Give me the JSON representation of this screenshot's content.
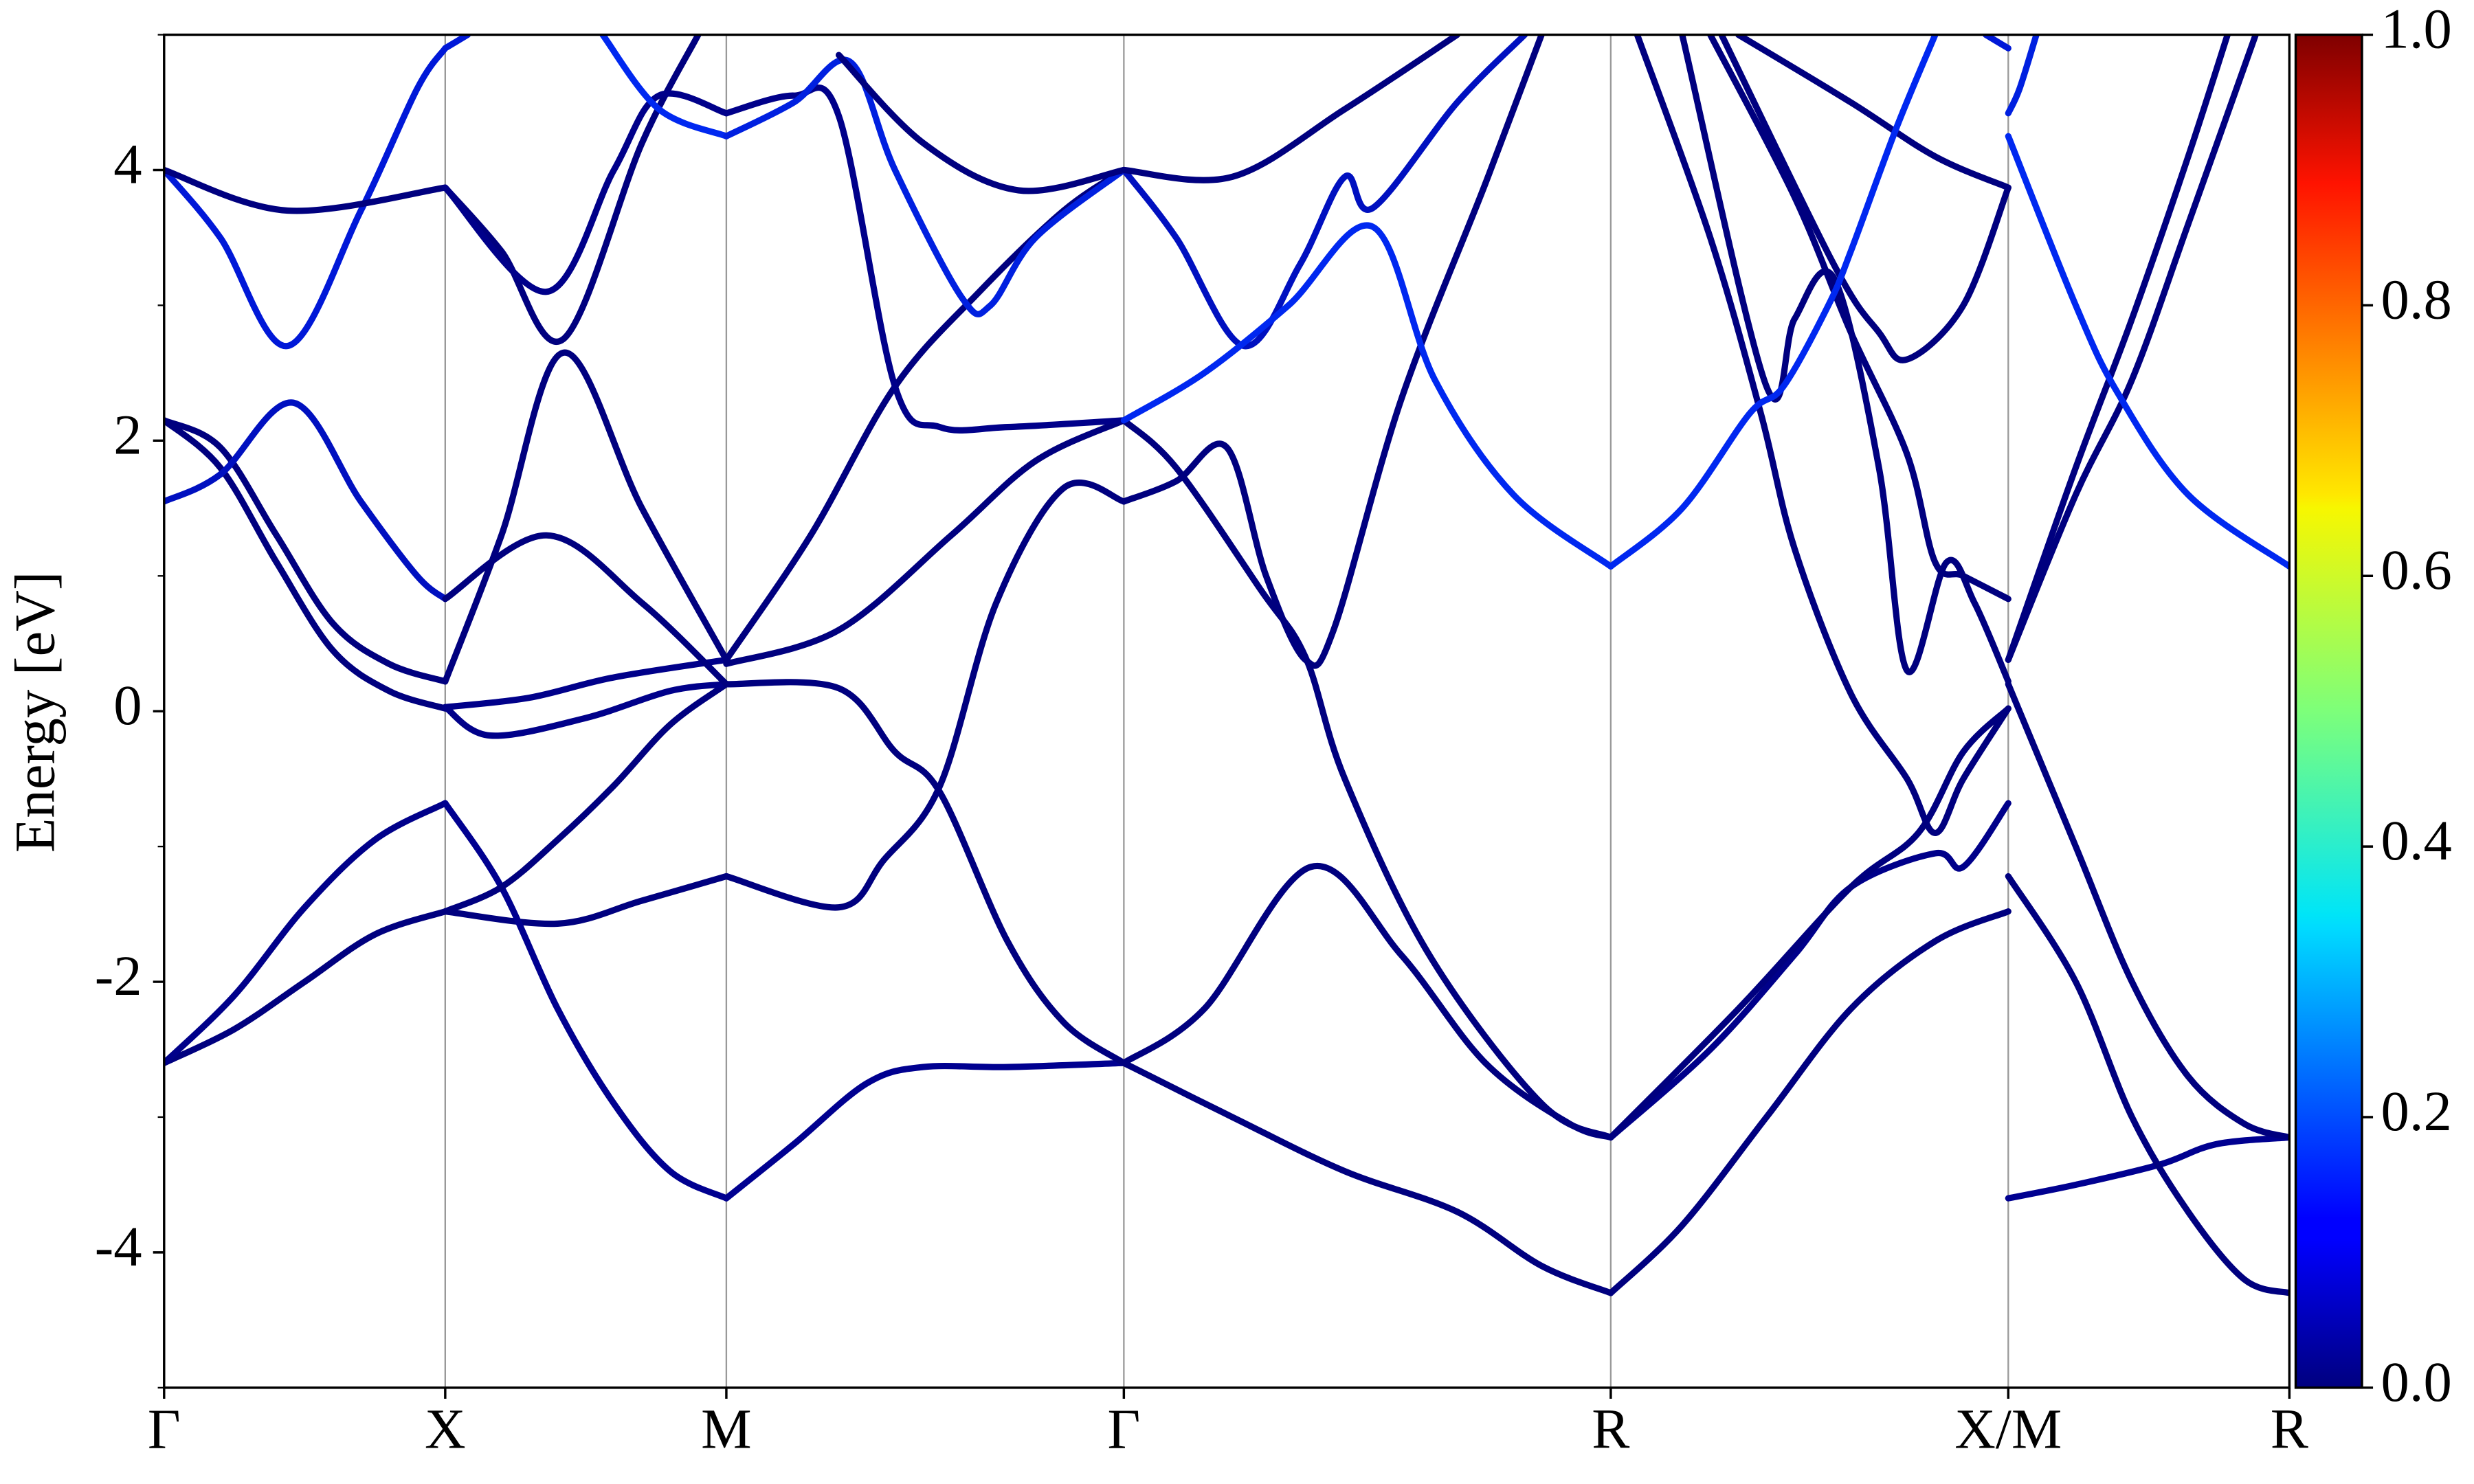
{
  "chart_data": {
    "type": "line",
    "ylabel": "Energy [eV]",
    "xlim": [
      0,
      3.78
    ],
    "ylim": [
      -5,
      5
    ],
    "xticks": [
      {
        "value": 0,
        "label": "Γ"
      },
      {
        "value": 0.5,
        "label": "X"
      },
      {
        "value": 1.0,
        "label": "M"
      },
      {
        "value": 1.707,
        "label": "Γ"
      },
      {
        "value": 2.573,
        "label": "R"
      },
      {
        "value": 3.28,
        "label": "X/M"
      },
      {
        "value": 3.78,
        "label": "R"
      }
    ],
    "yticks": [
      -4,
      -2,
      0,
      2,
      4
    ],
    "yminorticks": [
      -5,
      -3,
      -1,
      1,
      3,
      5
    ],
    "xgrid": true,
    "colorbar": {
      "colormap": "jet",
      "lim": [
        0,
        1
      ],
      "ticks": [
        {
          "value": 0,
          "label": "0.0"
        },
        {
          "value": 0.2,
          "label": "0.2"
        },
        {
          "value": 0.4,
          "label": "0.4"
        },
        {
          "value": 0.6,
          "label": "0.6"
        },
        {
          "value": 0.8,
          "label": "0.8"
        },
        {
          "value": 1,
          "label": "1.0"
        }
      ]
    },
    "series": [
      {
        "color": "#00007f",
        "x": [
          0,
          0.125,
          0.25,
          0.375,
          0.5
        ],
        "values": [
          -2.6,
          -2.35,
          -2.0,
          -1.65,
          -1.48
        ]
      },
      {
        "color": "#00008a",
        "x": [
          0,
          0.125,
          0.25,
          0.375,
          0.5
        ],
        "values": [
          -2.6,
          -2.1,
          -1.45,
          -0.95,
          -0.68
        ]
      },
      {
        "color": "#00007f",
        "x": [
          0,
          0.1,
          0.2,
          0.3,
          0.4,
          0.5
        ],
        "values": [
          2.15,
          1.8,
          1.1,
          0.45,
          0.15,
          0.02
        ]
      },
      {
        "color": "#00007f",
        "x": [
          0,
          0.1,
          0.2,
          0.3,
          0.4,
          0.5
        ],
        "values": [
          2.15,
          1.95,
          1.3,
          0.65,
          0.35,
          0.22
        ]
      },
      {
        "color": "#0010c0",
        "x": [
          0,
          0.1,
          0.23,
          0.35,
          0.45,
          0.5
        ],
        "values": [
          1.55,
          1.75,
          2.28,
          1.55,
          1.0,
          0.83
        ]
      },
      {
        "color": "#0018d8",
        "x": [
          0,
          0.1,
          0.22,
          0.35,
          0.45,
          0.5
        ],
        "values": [
          4.0,
          3.5,
          2.7,
          3.7,
          4.6,
          4.9
        ]
      },
      {
        "color": "#00007f",
        "x": [
          0,
          0.22,
          0.5
        ],
        "values": [
          4.0,
          3.7,
          3.87
        ]
      },
      {
        "color": "#00007f",
        "x": [
          0.5,
          0.7,
          0.85,
          1.0
        ],
        "values": [
          -1.48,
          -1.57,
          -1.4,
          -1.22
        ]
      },
      {
        "color": "#000090",
        "x": [
          0.5,
          0.6,
          0.7,
          0.8,
          0.9,
          1.0
        ],
        "values": [
          -0.68,
          -1.3,
          -2.2,
          -2.9,
          -3.4,
          -3.6
        ]
      },
      {
        "color": "#00007f",
        "x": [
          0.5,
          0.6,
          0.7,
          0.8,
          0.9,
          1.0
        ],
        "values": [
          -1.48,
          -1.3,
          -0.95,
          -0.55,
          -0.1,
          0.2
        ]
      },
      {
        "color": "#00008a",
        "x": [
          0.5,
          0.65,
          0.8,
          1.0
        ],
        "values": [
          0.03,
          0.1,
          0.25,
          0.38
        ]
      },
      {
        "color": "#00008a",
        "x": [
          0.5,
          0.58,
          0.75,
          0.9,
          1.0
        ],
        "values": [
          0.03,
          -0.18,
          -0.05,
          0.15,
          0.2
        ]
      },
      {
        "color": "#00007f",
        "x": [
          0.5,
          0.6,
          0.71,
          0.85,
          1.0
        ],
        "values": [
          0.22,
          1.3,
          2.65,
          1.5,
          0.38
        ]
      },
      {
        "color": "#00007f",
        "x": [
          0.5,
          0.68,
          0.85,
          1.0
        ],
        "values": [
          0.83,
          1.3,
          0.8,
          0.2
        ]
      },
      {
        "color": "#00007f",
        "x": [
          0.5,
          0.6,
          0.71,
          0.85,
          0.95
        ],
        "values": [
          3.87,
          3.4,
          2.75,
          4.2,
          5.0
        ]
      },
      {
        "color": "#00008a",
        "x": [
          0.5,
          0.68,
          0.8,
          0.88,
          1.0
        ],
        "values": [
          3.87,
          3.1,
          4.0,
          4.55,
          4.42
        ]
      },
      {
        "color": "#0018d8",
        "x": [
          0.5,
          0.54
        ],
        "values": [
          4.9,
          5.0
        ]
      },
      {
        "color": "#0028f0",
        "x": [
          0.78,
          0.88,
          1.0
        ],
        "values": [
          5.0,
          4.45,
          4.25
        ]
      },
      {
        "color": "#000090",
        "x": [
          1.0,
          1.12,
          1.25,
          1.35,
          1.5,
          1.707
        ],
        "values": [
          -3.6,
          -3.2,
          -2.75,
          -2.63,
          -2.63,
          -2.6
        ]
      },
      {
        "color": "#00007f",
        "x": [
          1.0,
          1.2,
          1.28,
          1.38,
          1.48,
          1.6,
          1.707
        ],
        "values": [
          -1.22,
          -1.45,
          -1.1,
          -0.55,
          0.8,
          1.65,
          1.55
        ]
      },
      {
        "color": "#00007f",
        "x": [
          1.0,
          1.2,
          1.3,
          1.38,
          1.5,
          1.6,
          1.707
        ],
        "values": [
          0.2,
          0.17,
          -0.3,
          -0.6,
          -1.7,
          -2.3,
          -2.6
        ]
      },
      {
        "color": "#00007f",
        "x": [
          1.0,
          1.2,
          1.4,
          1.55,
          1.707
        ],
        "values": [
          0.35,
          0.6,
          1.3,
          1.85,
          2.15
        ]
      },
      {
        "color": "#00007f",
        "x": [
          1.0,
          1.15,
          1.3,
          1.45,
          1.6,
          1.707
        ],
        "values": [
          0.38,
          1.3,
          2.4,
          3.1,
          3.7,
          4.0
        ]
      },
      {
        "color": "#00008a",
        "x": [
          1.0,
          1.12,
          1.2,
          1.3,
          1.38,
          1.5,
          1.707
        ],
        "values": [
          4.42,
          4.55,
          4.4,
          2.4,
          2.1,
          2.1,
          2.15
        ]
      },
      {
        "color": "#0020e0",
        "x": [
          1.0,
          1.12,
          1.22,
          1.3,
          1.42,
          1.47,
          1.55,
          1.707
        ],
        "values": [
          4.25,
          4.5,
          4.8,
          4.0,
          3.05,
          3.0,
          3.5,
          4.0
        ]
      },
      {
        "color": "#00007f",
        "x": [
          1.2,
          1.35,
          1.52,
          1.707
        ],
        "values": [
          4.85,
          4.2,
          3.85,
          4.0
        ]
      },
      {
        "color": "#00007f",
        "x": [
          1.707,
          1.9,
          2.1,
          2.3,
          2.45,
          2.573
        ],
        "values": [
          -2.6,
          -3.0,
          -3.4,
          -3.7,
          -4.1,
          -4.3
        ]
      },
      {
        "color": "#00007f",
        "x": [
          1.707,
          1.85,
          2.04,
          2.2,
          2.35,
          2.5,
          2.573
        ],
        "values": [
          -2.6,
          -2.2,
          -1.15,
          -1.8,
          -2.6,
          -3.05,
          -3.15
        ]
      },
      {
        "color": "#00007f",
        "x": [
          1.707,
          1.8,
          1.95,
          2.03,
          2.1,
          2.25,
          2.45,
          2.573
        ],
        "values": [
          2.15,
          1.8,
          0.9,
          0.4,
          -0.5,
          -1.8,
          -2.9,
          -3.15
        ]
      },
      {
        "color": "#00007f",
        "x": [
          1.707,
          1.8,
          1.89,
          1.96,
          2.03,
          2.08,
          2.2,
          2.35,
          2.45
        ],
        "values": [
          1.55,
          1.7,
          1.95,
          1.0,
          0.38,
          0.6,
          2.3,
          3.9,
          5.0
        ]
      },
      {
        "color": "#0010c0",
        "x": [
          1.707,
          1.8,
          1.92,
          2.02,
          2.1,
          2.15,
          2.3,
          2.42
        ],
        "values": [
          4.0,
          3.5,
          2.7,
          3.3,
          3.95,
          3.72,
          4.5,
          5.0
        ]
      },
      {
        "color": "#0028f0",
        "x": [
          1.707,
          1.85,
          2.0,
          2.15,
          2.26,
          2.4,
          2.573
        ],
        "values": [
          2.15,
          2.5,
          3.0,
          3.58,
          2.45,
          1.6,
          1.07
        ]
      },
      {
        "color": "#00007f",
        "x": [
          1.707,
          1.9,
          2.1,
          2.3
        ],
        "values": [
          4.0,
          3.95,
          4.45,
          5.0
        ]
      },
      {
        "color": "#00007f",
        "x": [
          2.573,
          2.7,
          2.85,
          3.0,
          3.15,
          3.28
        ],
        "values": [
          -4.3,
          -3.8,
          -3.0,
          -2.2,
          -1.7,
          -1.48
        ]
      },
      {
        "color": "#00008a",
        "x": [
          2.573,
          2.75,
          2.9,
          3.0,
          3.15,
          3.2,
          3.28
        ],
        "values": [
          -3.15,
          -2.5,
          -1.8,
          -1.3,
          -1.05,
          -1.15,
          -0.68
        ]
      },
      {
        "color": "#00007f",
        "x": [
          2.573,
          2.8,
          3.0,
          3.12,
          3.2,
          3.28
        ],
        "values": [
          -3.15,
          -2.2,
          -1.3,
          -0.9,
          -0.3,
          0.02
        ]
      },
      {
        "color": "#00007f",
        "x": [
          2.62,
          2.75,
          2.84,
          2.9,
          3.0,
          3.1,
          3.15,
          3.2,
          3.28
        ],
        "values": [
          5.0,
          3.5,
          2.2,
          1.2,
          0.13,
          -0.5,
          -0.9,
          -0.5,
          0.02
        ]
      },
      {
        "color": "#00007f",
        "x": [
          2.7,
          2.85,
          2.9,
          2.97,
          3.05,
          3.1,
          3.17,
          3.22,
          3.28
        ],
        "values": [
          5.0,
          2.4,
          2.9,
          3.2,
          1.8,
          0.3,
          1.1,
          0.8,
          0.22
        ]
      },
      {
        "color": "#00007f",
        "x": [
          2.75,
          2.9,
          3.0,
          3.1,
          3.15,
          3.2,
          3.28
        ],
        "values": [
          5.0,
          3.8,
          2.8,
          1.9,
          1.1,
          1.0,
          0.83
        ]
      },
      {
        "color": "#00007f",
        "x": [
          2.77,
          2.97,
          3.05,
          3.1,
          3.2,
          3.28
        ],
        "values": [
          5.0,
          3.3,
          2.8,
          2.6,
          3.0,
          3.87
        ]
      },
      {
        "color": "#00007f",
        "x": [
          2.8,
          3.0,
          3.15,
          3.28
        ],
        "values": [
          5.0,
          4.5,
          4.1,
          3.87
        ]
      },
      {
        "color": "#0028f0",
        "x": [
          2.573,
          2.7,
          2.82,
          2.88,
          2.96,
          3.0,
          3.08,
          3.15
        ],
        "values": [
          1.07,
          1.5,
          2.2,
          2.4,
          3.0,
          3.4,
          4.3,
          5.0
        ]
      },
      {
        "color": "#0018d8",
        "x": [
          3.24,
          3.28
        ],
        "values": [
          5.0,
          4.9
        ]
      },
      {
        "color": "#000090",
        "x": [
          3.28,
          3.4,
          3.55,
          3.65,
          3.78
        ],
        "values": [
          -3.6,
          -3.5,
          -3.35,
          -3.2,
          -3.15
        ]
      },
      {
        "color": "#00007f",
        "x": [
          3.28,
          3.4,
          3.5,
          3.6,
          3.7,
          3.78
        ],
        "values": [
          -1.22,
          -2.0,
          -3.0,
          -3.7,
          -4.2,
          -4.3
        ]
      },
      {
        "color": "#00007f",
        "x": [
          3.28,
          3.4,
          3.5,
          3.6,
          3.7,
          3.78
        ],
        "values": [
          0.2,
          -1.0,
          -2.0,
          -2.7,
          -3.05,
          -3.15
        ]
      },
      {
        "color": "#00007f",
        "x": [
          3.28,
          3.4,
          3.5,
          3.6,
          3.67
        ],
        "values": [
          0.38,
          1.8,
          2.9,
          4.1,
          5.0
        ]
      },
      {
        "color": "#00007f",
        "x": [
          3.28,
          3.4,
          3.5,
          3.6,
          3.72
        ],
        "values": [
          0.38,
          1.6,
          2.45,
          3.6,
          5.0
        ]
      },
      {
        "color": "#0028f0",
        "x": [
          3.28,
          3.4,
          3.475,
          3.6,
          3.78
        ],
        "values": [
          4.25,
          3.0,
          2.35,
          1.6,
          1.07
        ]
      },
      {
        "color": "#0020e0",
        "x": [
          3.28,
          3.3,
          3.33
        ],
        "values": [
          4.42,
          4.6,
          5.0
        ]
      }
    ]
  }
}
